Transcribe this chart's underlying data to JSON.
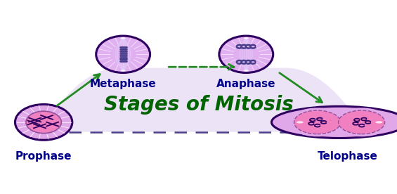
{
  "title": "Stages of Mitosis",
  "title_color": "#006400",
  "title_fontsize": 20,
  "background_color": "#ffffff",
  "stages": [
    "Prophase",
    "Metaphase",
    "Anaphase",
    "Telophase"
  ],
  "cell_outer_edge": "#2d0060",
  "cell_fill_light": "#e8b8f0",
  "cell_fill_pink": "#f0a0d8",
  "cell_inner_pink": "#f090c8",
  "arrow_color": "#228B22",
  "dashed_arrow_color": "#483D8B",
  "arc_fill_color": "#dcc8f0",
  "arc_fill_alpha": 0.5,
  "label_color": "#00008B",
  "label_fontsize": 11,
  "label_fontweight": "bold",
  "spindle_color": "#e8c8f0",
  "chrom_color": "#483D8B"
}
